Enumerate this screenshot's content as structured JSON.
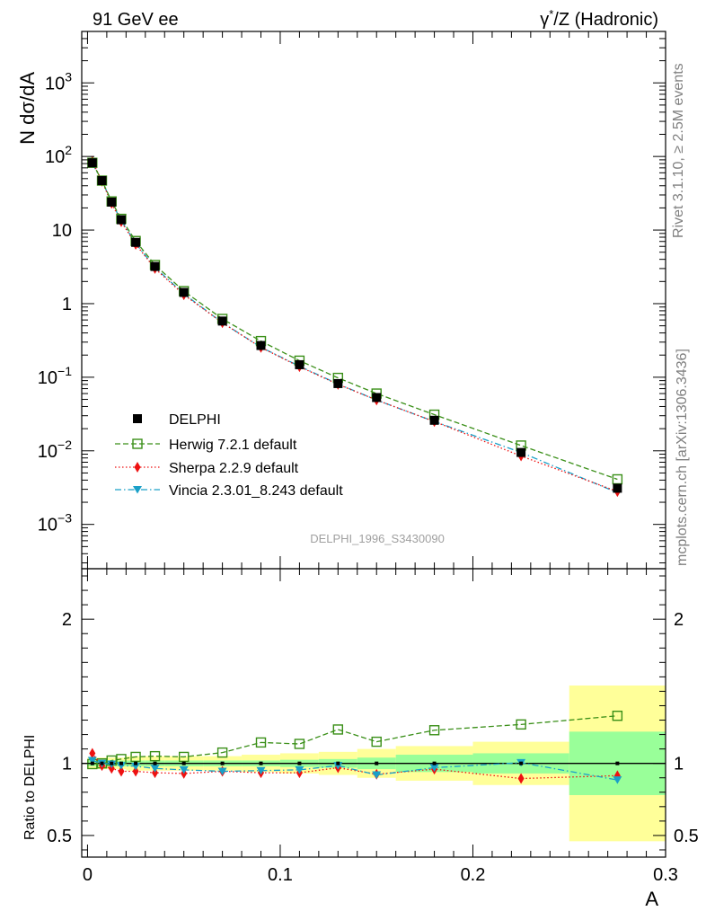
{
  "header": {
    "left": "91 GeV ee",
    "right_prefix": "γ",
    "right_sup": "*",
    "right_suffix": "/Z (Hadronic)"
  },
  "side_labels": {
    "rivet": "Rivet 3.1.10, ≥ 2.5M events",
    "mcplots": "mcplots.cern.ch [arXiv:1306.3436]"
  },
  "watermark": "DELPHI_1996_S3430090",
  "chart_data": [
    {
      "type": "scatter",
      "panel": "main",
      "ylabel": "N dσ/dA",
      "yscale": "log",
      "ylim": [
        0.00025,
        5000
      ],
      "xlim": [
        -0.003,
        0.3
      ],
      "ytick_labels": [
        {
          "v": 1000,
          "base": "10",
          "exp": "3"
        },
        {
          "v": 100,
          "base": "10",
          "exp": "2"
        },
        {
          "v": 10,
          "base": "10",
          "exp": ""
        },
        {
          "v": 1,
          "base": "1",
          "exp": ""
        },
        {
          "v": 0.1,
          "base": "10",
          "exp": "−1"
        },
        {
          "v": 0.01,
          "base": "10",
          "exp": "−2"
        },
        {
          "v": 0.001,
          "base": "10",
          "exp": "−3"
        }
      ],
      "x": [
        0.0025,
        0.0075,
        0.0125,
        0.0175,
        0.025,
        0.035,
        0.05,
        0.07,
        0.09,
        0.11,
        0.13,
        0.15,
        0.18,
        0.225,
        0.275
      ],
      "series": [
        {
          "name": "DELPHI",
          "color": "#000000",
          "marker": "filled-square",
          "line": "none",
          "values": [
            82,
            47,
            24,
            13.8,
            6.8,
            3.2,
            1.42,
            0.58,
            0.27,
            0.148,
            0.082,
            0.053,
            0.026,
            0.0095,
            0.0031
          ]
        },
        {
          "name": "Herwig 7.2.1 default",
          "color": "#3a8f18",
          "marker": "open-square",
          "line": "dashed",
          "values": [
            82,
            47,
            24.5,
            14.2,
            7.1,
            3.35,
            1.48,
            0.62,
            0.31,
            0.168,
            0.098,
            0.06,
            0.031,
            0.0118,
            0.0041
          ]
        },
        {
          "name": "Sherpa 2.2.9 default",
          "color": "#ee1111",
          "marker": "diamond",
          "line": "dotted",
          "values": [
            86,
            46,
            23,
            13,
            6.4,
            3.0,
            1.32,
            0.55,
            0.254,
            0.139,
            0.08,
            0.049,
            0.025,
            0.0085,
            0.0028
          ]
        },
        {
          "name": "Vincia 2.3.01_8.243 default",
          "color": "#1aa0c8",
          "marker": "triangle-down",
          "line": "dashdot",
          "values": [
            80,
            47,
            23.8,
            13.5,
            6.6,
            3.1,
            1.36,
            0.55,
            0.256,
            0.141,
            0.081,
            0.049,
            0.025,
            0.0095,
            0.0027
          ]
        }
      ]
    },
    {
      "type": "scatter",
      "panel": "ratio",
      "ylabel": "Ratio to DELPHI",
      "ylim": [
        0.35,
        2.35
      ],
      "xlabel": "A",
      "xlim": [
        -0.003,
        0.3
      ],
      "xtick_labels": [
        {
          "v": 0,
          "label": "0"
        },
        {
          "v": 0.1,
          "label": "0.1"
        },
        {
          "v": 0.2,
          "label": "0.2"
        },
        {
          "v": 0.3,
          "label": "0.3"
        }
      ],
      "ytick_labels": [
        {
          "v": 2,
          "label": "2"
        },
        {
          "v": 1,
          "label": "1"
        },
        {
          "v": 0.5,
          "label": "0.5"
        }
      ],
      "uncertainty_bands": [
        {
          "x0": 0.0,
          "x1": 0.005,
          "stat": 0.02,
          "tot": 0.04
        },
        {
          "x0": 0.005,
          "x1": 0.01,
          "stat": 0.02,
          "tot": 0.04
        },
        {
          "x0": 0.01,
          "x1": 0.015,
          "stat": 0.02,
          "tot": 0.04
        },
        {
          "x0": 0.015,
          "x1": 0.02,
          "stat": 0.02,
          "tot": 0.04
        },
        {
          "x0": 0.02,
          "x1": 0.03,
          "stat": 0.02,
          "tot": 0.05
        },
        {
          "x0": 0.03,
          "x1": 0.04,
          "stat": 0.02,
          "tot": 0.05
        },
        {
          "x0": 0.04,
          "x1": 0.06,
          "stat": 0.02,
          "tot": 0.05
        },
        {
          "x0": 0.06,
          "x1": 0.08,
          "stat": 0.02,
          "tot": 0.05
        },
        {
          "x0": 0.08,
          "x1": 0.1,
          "stat": 0.02,
          "tot": 0.06
        },
        {
          "x0": 0.1,
          "x1": 0.12,
          "stat": 0.025,
          "tot": 0.07
        },
        {
          "x0": 0.12,
          "x1": 0.14,
          "stat": 0.03,
          "tot": 0.08
        },
        {
          "x0": 0.14,
          "x1": 0.16,
          "stat": 0.04,
          "tot": 0.1
        },
        {
          "x0": 0.16,
          "x1": 0.2,
          "stat": 0.06,
          "tot": 0.12
        },
        {
          "x0": 0.2,
          "x1": 0.25,
          "stat": 0.07,
          "tot": 0.15
        },
        {
          "x0": 0.25,
          "x1": 0.3,
          "stat": 0.22,
          "tot": 0.54
        }
      ],
      "band_colors": {
        "stat": "#99ff99",
        "tot": "#ffff99"
      },
      "series": [
        {
          "name": "Herwig 7.2.1 default",
          "values": [
            0.995,
            1.0,
            1.02,
            1.03,
            1.045,
            1.05,
            1.045,
            1.075,
            1.145,
            1.135,
            1.235,
            1.15,
            1.23,
            1.27,
            1.33
          ]
        },
        {
          "name": "Sherpa 2.2.9 default",
          "values": [
            1.07,
            0.985,
            0.965,
            0.945,
            0.945,
            0.935,
            0.93,
            0.945,
            0.935,
            0.935,
            0.97,
            0.925,
            0.96,
            0.895,
            0.915
          ]
        },
        {
          "name": "Vincia 2.3.01_8.243 default",
          "values": [
            1.02,
            1.0,
            0.995,
            0.985,
            0.98,
            0.965,
            0.955,
            0.945,
            0.95,
            0.955,
            0.985,
            0.92,
            0.97,
            1.005,
            0.885
          ]
        }
      ]
    }
  ]
}
